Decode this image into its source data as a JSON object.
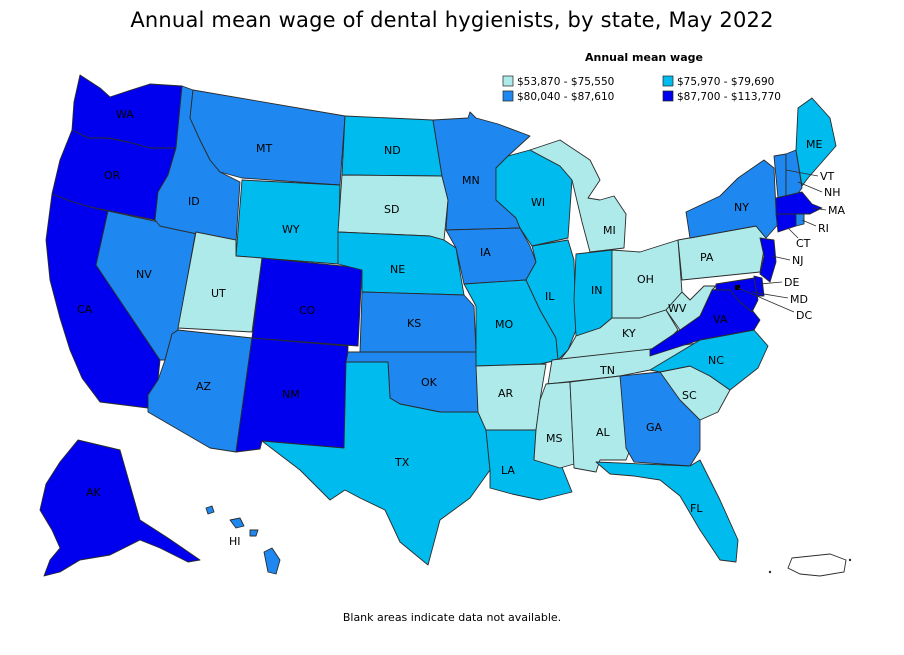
{
  "title": "Annual mean wage of dental hygienists, by state, May 2022",
  "footnote": "Blank areas indicate data not available.",
  "legend": {
    "title": "Annual mean wage",
    "bins": [
      {
        "range": "$53,870 - $75,550",
        "color": "#aeeaea"
      },
      {
        "range": "$75,970 - $79,690",
        "color": "#00bbee"
      },
      {
        "range": "$80,040 - $87,610",
        "color": "#1e88f0"
      },
      {
        "range": "$87,700 - $113,770",
        "color": "#0000ee"
      }
    ]
  },
  "states": {
    "WA": "WA",
    "OR": "OR",
    "CA": "CA",
    "NV": "NV",
    "ID": "ID",
    "MT": "MT",
    "WY": "WY",
    "UT": "UT",
    "CO": "CO",
    "AZ": "AZ",
    "NM": "NM",
    "ND": "ND",
    "SD": "SD",
    "NE": "NE",
    "KS": "KS",
    "OK": "OK",
    "TX": "TX",
    "MN": "MN",
    "IA": "IA",
    "MO": "MO",
    "AR": "AR",
    "LA": "LA",
    "WI": "WI",
    "IL": "IL",
    "MI": "MI",
    "IN": "IN",
    "OH": "OH",
    "KY": "KY",
    "TN": "TN",
    "MS": "MS",
    "AL": "AL",
    "GA": "GA",
    "FL": "FL",
    "SC": "SC",
    "NC": "NC",
    "VA": "VA",
    "WV": "WV",
    "PA": "PA",
    "NY": "NY",
    "ME": "ME",
    "VT": "VT",
    "NH": "NH",
    "MA": "MA",
    "RI": "RI",
    "CT": "CT",
    "NJ": "NJ",
    "DE": "DE",
    "MD": "MD",
    "DC": "DC",
    "AK": "AK",
    "HI": "HI"
  }
}
